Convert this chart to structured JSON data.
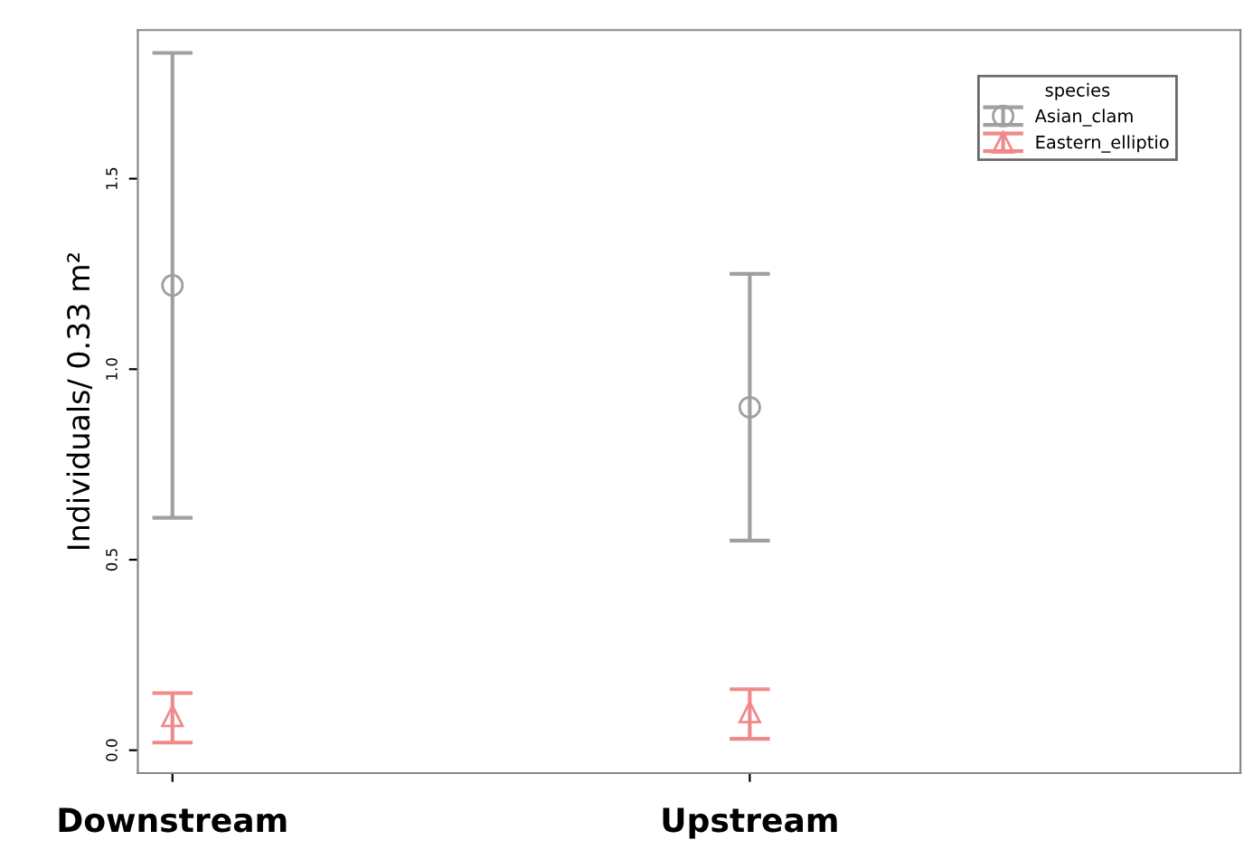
{
  "chart_data": {
    "type": "scatter",
    "ylabel": "Individuals/ 0.33 m²",
    "legend_title": "species",
    "legend": "top right",
    "categories": [
      "Downstream",
      "Upstream"
    ],
    "series": [
      {
        "name": "Asian_clam",
        "color": "#a0a0a0",
        "marker": "circle",
        "values": [
          1.22,
          0.9
        ],
        "errors": [
          [
            0.61,
            1.83
          ],
          [
            0.55,
            1.25
          ]
        ]
      },
      {
        "name": "Eastern_elliptio",
        "color": "#f08a8a",
        "marker": "triangle",
        "values": [
          0.09,
          0.1
        ],
        "errors": [
          [
            0.02,
            0.15
          ],
          [
            0.03,
            0.16
          ]
        ]
      }
    ],
    "ylim": [
      -0.06,
      1.89
    ],
    "yticks": [
      {
        "value": 0,
        "label": "0.0"
      },
      {
        "value": 0.5,
        "label": "0.5"
      },
      {
        "value": 1,
        "label": "1.0"
      },
      {
        "value": 1.5,
        "label": "1.5"
      }
    ],
    "grid": false
  }
}
